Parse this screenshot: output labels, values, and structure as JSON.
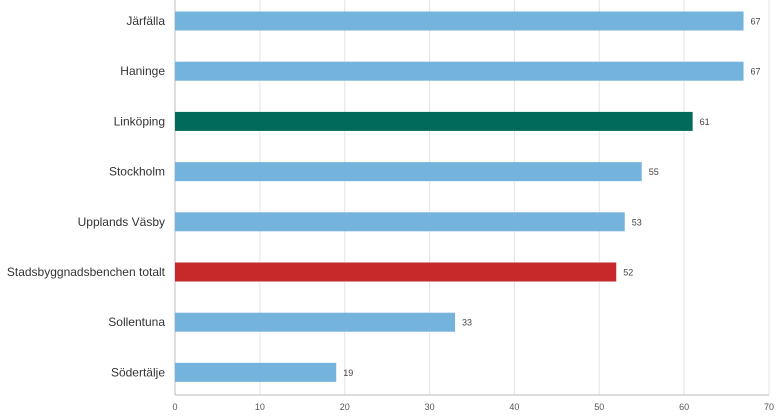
{
  "chart_data": {
    "type": "bar",
    "orientation": "horizontal",
    "categories": [
      "Järfälla",
      "Haninge",
      "Linköping",
      "Stockholm",
      "Upplands Väsby",
      "Stadsbyggnadsbenchen totalt",
      "Sollentuna",
      "Södertälje"
    ],
    "values": [
      67,
      67,
      61,
      55,
      53,
      52,
      33,
      19
    ],
    "bar_colors": [
      "#74b4dc",
      "#74b4dc",
      "#016a5b",
      "#74b4dc",
      "#74b4dc",
      "#c62829",
      "#74b4dc",
      "#74b4dc"
    ],
    "xlim": [
      0,
      70
    ],
    "xticks": [
      0,
      10,
      20,
      30,
      40,
      50,
      60,
      70
    ],
    "grid": true,
    "title": "",
    "xlabel": "",
    "ylabel": ""
  }
}
